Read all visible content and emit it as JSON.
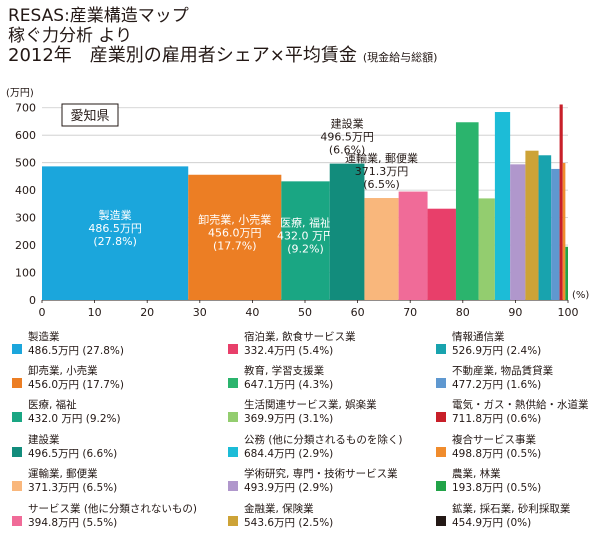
{
  "title": {
    "line1": "RESAS:産業構造マップ",
    "line2": "稼ぐ力分析 より",
    "line3": "2012年　産業別の雇用者シェア×平均賃金",
    "line3_note": "(現金給与総額)"
  },
  "chart_data": {
    "type": "bar",
    "subtype": "variable-width (marimekko) bar",
    "region_label": "愛知県",
    "ylabel": "(万円)",
    "xlabel": "(%)",
    "xlim": [
      0,
      100
    ],
    "ylim": [
      0,
      750
    ],
    "xticks": [
      0,
      10,
      20,
      30,
      40,
      50,
      60,
      70,
      80,
      90,
      100
    ],
    "yticks": [
      0,
      100,
      200,
      300,
      400,
      500,
      600,
      700
    ],
    "grid": "horizontal",
    "legend_position": "bottom",
    "series": [
      {
        "name": "製造業",
        "value_label": "486.5万円 (27.8%)",
        "share": 27.8,
        "wage": 486.5,
        "color": "#1ba6dc",
        "bar_label": [
          "製造業",
          "486.5万円",
          "(27.8%)"
        ],
        "label_pos": "inside"
      },
      {
        "name": "卸売業, 小売業",
        "value_label": "456.0万円 (17.7%)",
        "share": 17.7,
        "wage": 456.0,
        "color": "#ec7e24",
        "bar_label": [
          "卸売業, 小売業",
          "456.0万円",
          "(17.7%)"
        ],
        "label_pos": "inside"
      },
      {
        "name": "医療, 福祉",
        "value_label": "432.0 万円 (9.2%)",
        "share": 9.2,
        "wage": 432.0,
        "color": "#1aa683",
        "bar_label": [
          "医療, 福祉",
          "432.0 万円",
          "(9.2%)"
        ],
        "label_pos": "inside"
      },
      {
        "name": "建設業",
        "value_label": "496.5万円 (6.6%)",
        "share": 6.6,
        "wage": 496.5,
        "color": "#128c7c",
        "bar_label": [
          "建設業",
          "496.5万円",
          "(6.6%)"
        ],
        "label_pos": "above"
      },
      {
        "name": "運輸業, 郵便業",
        "value_label": "371.3万円 (6.5%)",
        "share": 6.5,
        "wage": 371.3,
        "color": "#f9b77c",
        "bar_label": [
          "運輸業, 郵便業",
          "371.3万円",
          "(6.5%)"
        ],
        "label_pos": "above"
      },
      {
        "name": "サービス業 (他に分類されないもの)",
        "value_label": "394.8万円 (5.5%)",
        "share": 5.5,
        "wage": 394.8,
        "color": "#f06b98"
      },
      {
        "name": "宿泊業, 飲食サービス業",
        "value_label": "332.4万円 (5.4%)",
        "share": 5.4,
        "wage": 332.4,
        "color": "#e83f6a"
      },
      {
        "name": "教育, 学習支援業",
        "value_label": "647.1万円 (4.3%)",
        "share": 4.3,
        "wage": 647.1,
        "color": "#2bb46d"
      },
      {
        "name": "生活関連サービス業, 娯楽業",
        "value_label": "369.9万円 (3.1%)",
        "share": 3.1,
        "wage": 369.9,
        "color": "#93cd6f"
      },
      {
        "name": "公務 (他に分類されるものを除く)",
        "value_label": "684.4万円 (2.9%)",
        "share": 2.9,
        "wage": 684.4,
        "color": "#1cbcd7"
      },
      {
        "name": "学術研究, 専門・技術サービス業",
        "value_label": "493.9万円 (2.9%)",
        "share": 2.9,
        "wage": 493.9,
        "color": "#b097cc"
      },
      {
        "name": "金融業, 保険業",
        "value_label": "543.6万円 (2.5%)",
        "share": 2.5,
        "wage": 543.6,
        "color": "#cda337"
      },
      {
        "name": "情報通信業",
        "value_label": "526.9万円 (2.4%)",
        "share": 2.4,
        "wage": 526.9,
        "color": "#18a3ae"
      },
      {
        "name": "不動産業, 物品賃貸業",
        "value_label": "477.2万円 (1.6%)",
        "share": 1.6,
        "wage": 477.2,
        "color": "#5f98d0"
      },
      {
        "name": "電気・ガス・熱供給・水道業",
        "value_label": "711.8万円 (0.6%)",
        "share": 0.6,
        "wage": 711.8,
        "color": "#c81f29"
      },
      {
        "name": "複合サービス事業",
        "value_label": "498.8万円 (0.5%)",
        "share": 0.5,
        "wage": 498.8,
        "color": "#f08c2d"
      },
      {
        "name": "農業, 林業",
        "value_label": "193.8万円 (0.5%)",
        "share": 0.5,
        "wage": 193.8,
        "color": "#21a348"
      },
      {
        "name": "鉱業, 採石業, 砂利採取業",
        "value_label": "454.9万円 (0%)",
        "share": 0.0,
        "wage": 454.9,
        "color": "#231815"
      }
    ]
  }
}
